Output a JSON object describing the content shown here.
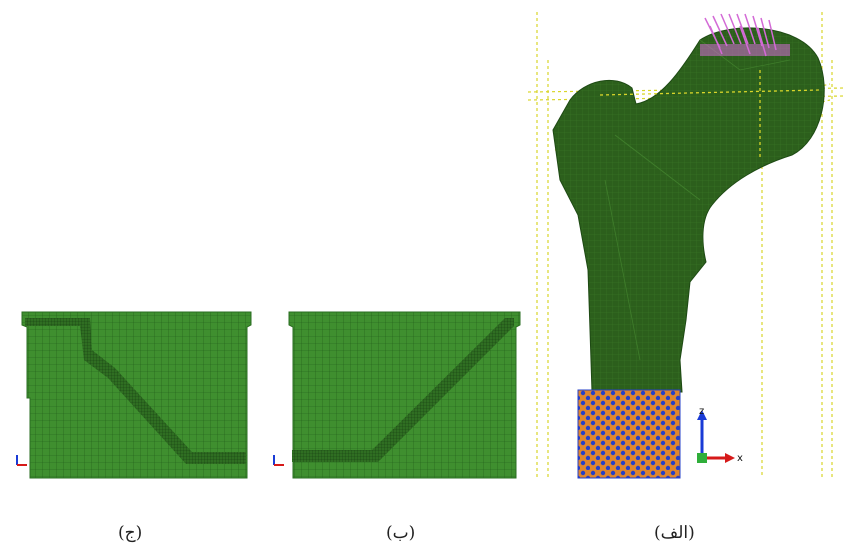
{
  "captions": {
    "left": "(ج)",
    "middle": "(ب)",
    "right": "(الف)"
  },
  "axes": {
    "z": "z",
    "x": "x"
  },
  "colors": {
    "mesh_green": "#3f8f2f",
    "mesh_line": "#1f5a18",
    "femur_green": "#2c5f1c",
    "guide_yellow": "#d9d62a",
    "load_magenta": "#d36ad6",
    "bc_orange": "#e0862e",
    "bc_blue": "#2640c8",
    "axis_blue": "#1a3bd6",
    "axis_red": "#d61a1a"
  }
}
